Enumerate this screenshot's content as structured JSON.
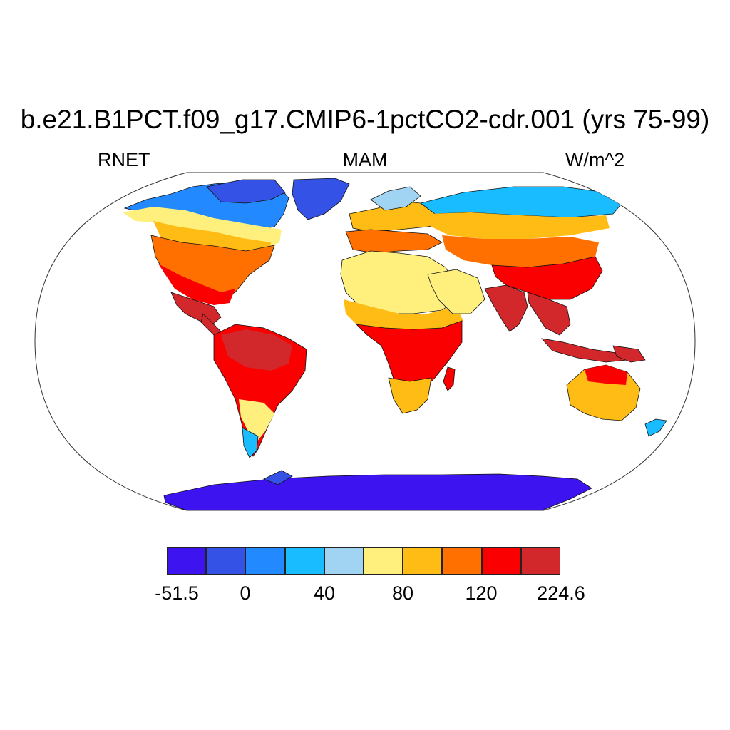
{
  "title": "b.e21.B1PCT.f09_g17.CMIP6-1pctCO2-cdr.001 (yrs 75-99)",
  "left_label": "RNET",
  "center_label": "MAM",
  "right_label": "W/m^2",
  "colorbar": {
    "colors": [
      "#3d14f0",
      "#3552e6",
      "#2389ff",
      "#19bdff",
      "#a0d4f2",
      "#fff07d",
      "#ffbc14",
      "#ff7000",
      "#fa0000",
      "#d2282c"
    ],
    "labels": [
      "-51.5",
      "0",
      "40",
      "80",
      "120",
      "224.6"
    ]
  },
  "chart_data": {
    "type": "heatmap",
    "variable": "RNET",
    "season": "MAM",
    "units": "W/m^2",
    "range": [
      -51.5,
      224.6
    ],
    "colorbar_tick_values": [
      -51.5,
      0,
      40,
      80,
      120,
      224.6
    ],
    "projection": "Robinson",
    "regions": [
      {
        "region": "Greenland / Arctic islands",
        "class": 1
      },
      {
        "region": "Antarctica",
        "class": 0
      },
      {
        "region": "Northern Canada",
        "class": 3
      },
      {
        "region": "United States",
        "class": 7
      },
      {
        "region": "Central America",
        "class": 9
      },
      {
        "region": "Amazon",
        "class": 9
      },
      {
        "region": "Southern South America",
        "class": 5
      },
      {
        "region": "Patagonia",
        "class": 4
      },
      {
        "region": "Europe",
        "class": 6
      },
      {
        "region": "Siberia",
        "class": 3
      },
      {
        "region": "Sahara",
        "class": 5
      },
      {
        "region": "Central Africa",
        "class": 8
      },
      {
        "region": "Southern Africa",
        "class": 7
      },
      {
        "region": "Arabia",
        "class": 5
      },
      {
        "region": "India / SE Asia",
        "class": 9
      },
      {
        "region": "China",
        "class": 8
      },
      {
        "region": "Australia",
        "class": 6
      },
      {
        "region": "New Zealand",
        "class": 3
      }
    ]
  }
}
